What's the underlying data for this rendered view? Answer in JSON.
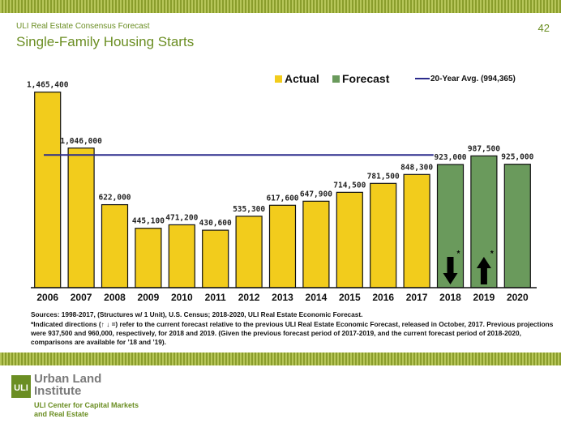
{
  "header": {
    "report_name": "ULI Real Estate Consensus Forecast",
    "title": "Single-Family Housing Starts",
    "page_number": "42"
  },
  "chart_data": {
    "type": "bar",
    "categories": [
      "2006",
      "2007",
      "2008",
      "2009",
      "2010",
      "2011",
      "2012",
      "2013",
      "2014",
      "2015",
      "2016",
      "2017",
      "2018",
      "2019",
      "2020"
    ],
    "values": [
      1465400,
      1046000,
      622000,
      445100,
      471200,
      430600,
      535300,
      617600,
      647900,
      714500,
      781500,
      848300,
      923000,
      987500,
      925000
    ],
    "value_labels": [
      "1,465,400",
      "1,046,000",
      "622,000",
      "445,100",
      "471,200",
      "430,600",
      "535,300",
      "617,600",
      "647,900",
      "714,500",
      "781,500",
      "848,300",
      "923,000",
      "987,500",
      "925,000"
    ],
    "series_type": [
      "actual",
      "actual",
      "actual",
      "actual",
      "actual",
      "actual",
      "actual",
      "actual",
      "actual",
      "actual",
      "actual",
      "actual",
      "forecast",
      "forecast",
      "forecast"
    ],
    "legend": {
      "actual": "Actual",
      "forecast": "Forecast",
      "average": "20-Year Avg. (994,365)"
    },
    "average": 994365,
    "indicators": [
      {
        "category": "2018",
        "direction": "down",
        "mark": "*"
      },
      {
        "category": "2019",
        "direction": "up",
        "mark": "*"
      }
    ],
    "ylim": [
      0,
      1500000
    ],
    "grid": false,
    "legend_position": "top",
    "colors": {
      "actual": "#f2cc1c",
      "forecast": "#6a9a5c",
      "average": "#2b2b8c",
      "bar_edge": "#111111"
    }
  },
  "notes": {
    "sources": "Sources: 1998-2017, (Structures w/ 1 Unit), U.S. Census; 2018-2020, ULI Real Estate Economic Forecast.",
    "indicators": "*Indicated directions (↑ ↓ =) refer to the current forecast relative to the previous ULI Real Estate Economic Forecast, released in October, 2017. Previous projections were 937,500 and 960,000, respectively, for 2018 and 2019. (Given the previous forecast period of 2017-2019, and the current forecast period of 2018-2020, comparisons are available for ’18 and ’19)."
  },
  "footer": {
    "logo_org": "Urban Land Institute",
    "logo_center": "ULI Center for Capital Markets and Real Estate",
    "logo_mark": "ULI"
  }
}
